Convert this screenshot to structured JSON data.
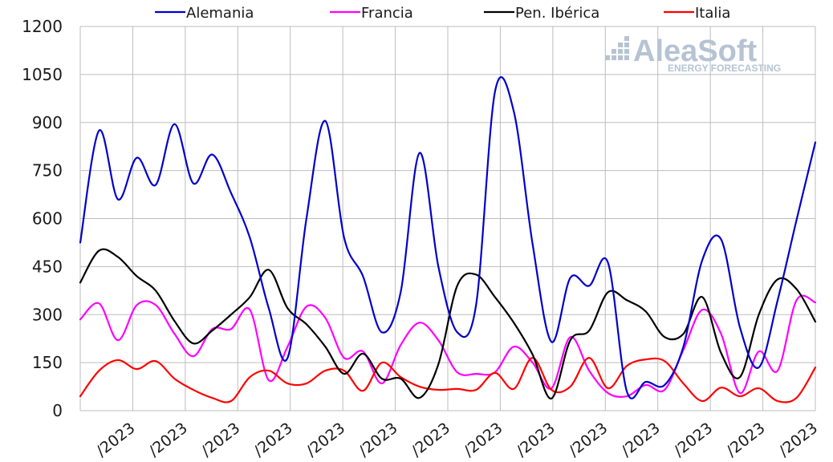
{
  "chart_data": {
    "type": "line",
    "ylim": [
      0,
      1200
    ],
    "yticks": [
      0,
      150,
      300,
      450,
      600,
      750,
      900,
      1050,
      1200
    ],
    "grid": true,
    "legend_position": "top",
    "x_tick_labels": [
      "/2023",
      "/2023",
      "/2023",
      "/2023",
      "/2023",
      "/2023",
      "/2023",
      "/2023",
      "/2023",
      "/2023",
      "/2023",
      "/2023",
      "/2023",
      "/2023"
    ],
    "x_count": 40,
    "series": [
      {
        "name": "Alemania",
        "color": "#0000cc",
        "values": [
          525,
          875,
          660,
          790,
          705,
          895,
          710,
          800,
          680,
          540,
          320,
          165,
          600,
          905,
          540,
          420,
          245,
          370,
          805,
          450,
          245,
          330,
          995,
          935,
          520,
          215,
          415,
          390,
          462,
          60,
          90,
          80,
          200,
          470,
          535,
          260,
          135,
          345,
          595,
          838
        ]
      },
      {
        "name": "Francia",
        "color": "#ff00ff",
        "values": [
          285,
          335,
          220,
          330,
          330,
          240,
          170,
          255,
          255,
          315,
          95,
          200,
          325,
          290,
          165,
          185,
          85,
          205,
          275,
          220,
          120,
          115,
          120,
          200,
          150,
          70,
          230,
          125,
          55,
          45,
          80,
          65,
          190,
          315,
          240,
          55,
          185,
          125,
          345,
          338
        ]
      },
      {
        "name": "Pen. Ibérica",
        "color": "#000000",
        "values": [
          400,
          500,
          480,
          420,
          375,
          280,
          210,
          250,
          300,
          355,
          440,
          320,
          270,
          200,
          115,
          178,
          100,
          100,
          40,
          145,
          390,
          425,
          355,
          275,
          175,
          38,
          220,
          250,
          370,
          345,
          310,
          230,
          240,
          355,
          180,
          105,
          300,
          410,
          380,
          278
        ]
      },
      {
        "name": "Italia",
        "color": "#ff0000",
        "values": [
          45,
          125,
          158,
          130,
          155,
          100,
          65,
          40,
          30,
          105,
          125,
          85,
          85,
          125,
          125,
          62,
          150,
          105,
          75,
          65,
          68,
          65,
          118,
          68,
          165,
          65,
          75,
          165,
          70,
          140,
          160,
          155,
          85,
          30,
          72,
          45,
          70,
          30,
          40,
          135
        ]
      }
    ]
  },
  "logo": {
    "main": "AleaSoft",
    "sub": "ENERGY FORECASTING"
  }
}
